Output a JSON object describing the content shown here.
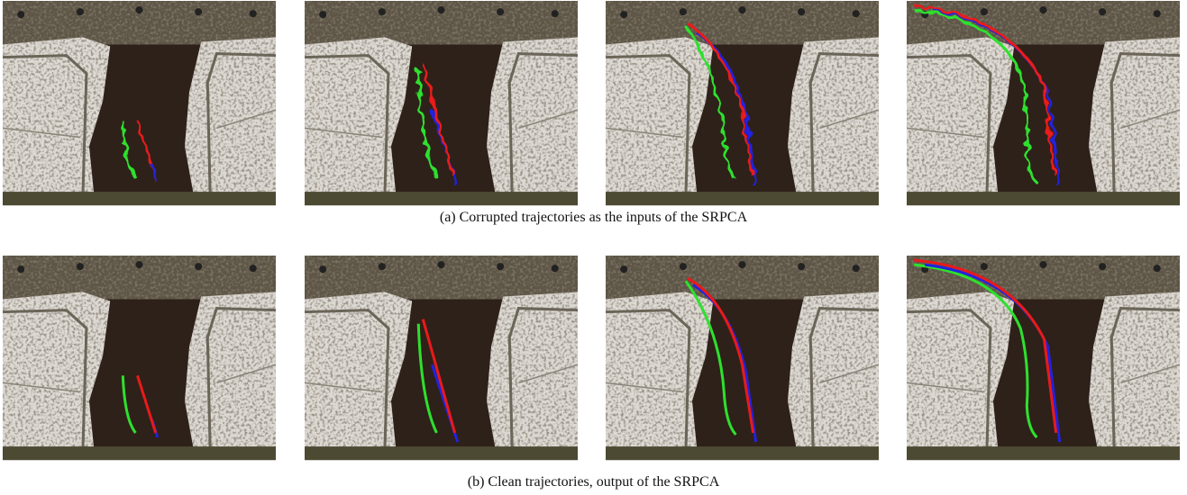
{
  "figure": {
    "captions": [
      "(a)  Corrupted trajectories as the inputs of the SRPCA",
      "(b)  Clean trajectories, output of the SRPCA"
    ]
  }
}
